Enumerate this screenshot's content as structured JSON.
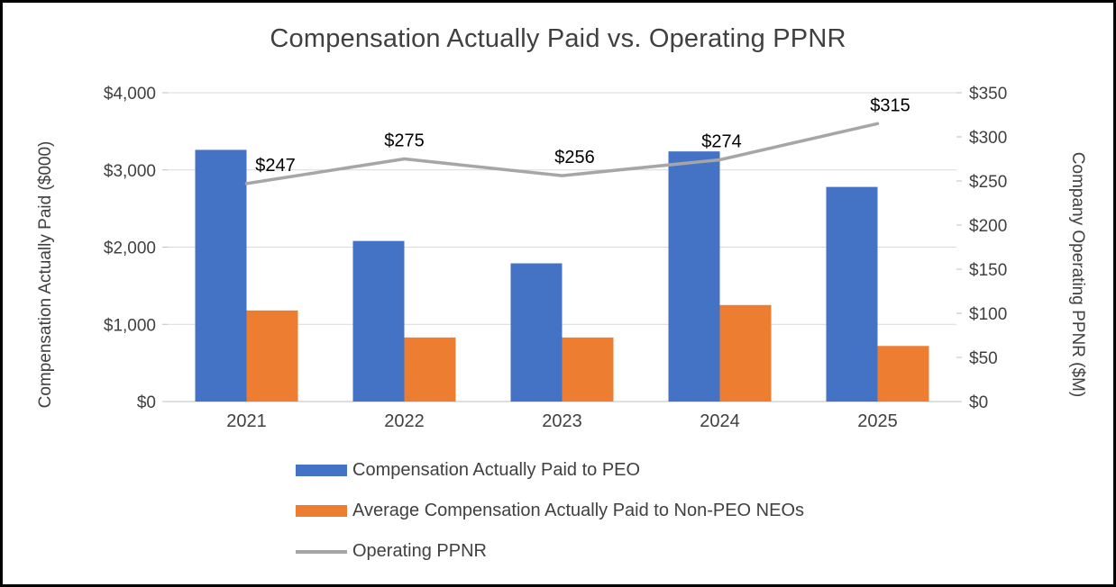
{
  "title": "Compensation Actually Paid vs. Operating PPNR",
  "chart_data": {
    "type": "combo",
    "categories": [
      "2021",
      "2022",
      "2023",
      "2024",
      "2025"
    ],
    "series": [
      {
        "name": "Compensation Actually Paid to PEO",
        "type": "bar",
        "axis": "left",
        "color": "#4472C4",
        "values": [
          3260,
          2080,
          1790,
          3240,
          2780
        ]
      },
      {
        "name": "Average Compensation Actually Paid to Non-PEO NEOs",
        "type": "bar",
        "axis": "left",
        "color": "#ED7D31",
        "values": [
          1180,
          830,
          830,
          1250,
          720
        ]
      },
      {
        "name": "Operating PPNR",
        "type": "line",
        "axis": "right",
        "color": "#A6A6A6",
        "values": [
          247,
          275,
          256,
          274,
          315
        ],
        "data_labels": [
          "$247",
          "$275",
          "$256",
          "$274",
          "$315"
        ]
      }
    ],
    "left_axis": {
      "title": "Compensation Actually Paid ($000)",
      "min": 0,
      "max": 4000,
      "step": 1000,
      "ticks": [
        "$0",
        "$1,000",
        "$2,000",
        "$3,000",
        "$4,000"
      ]
    },
    "right_axis": {
      "title": "Company Operating PPNR ($M)",
      "min": 0,
      "max": 350,
      "step": 50,
      "ticks": [
        "$0",
        "$50",
        "$100",
        "$150",
        "$200",
        "$250",
        "$300",
        "$350"
      ]
    },
    "grid": true,
    "legend_position": "bottom-left",
    "colors": {
      "title_text": "#404040",
      "axis_text": "#404040",
      "gridline": "#D9D9D9",
      "frame_border": "#000000"
    }
  }
}
